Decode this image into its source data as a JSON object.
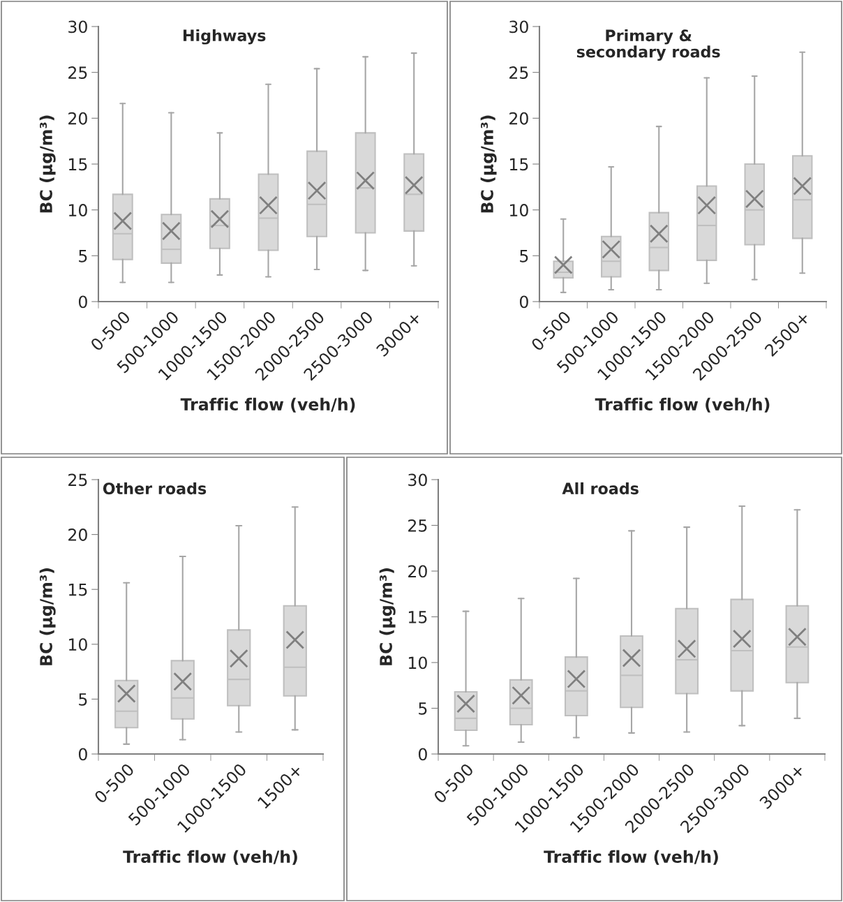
{
  "chart_data": [
    {
      "type": "box",
      "title": "Highways",
      "xlabel": "Traffic flow (veh/h)",
      "ylabel": "BC (µg/m³)",
      "categories": [
        "0-500",
        "500-1000",
        "1000-1500",
        "1500-2000",
        "2000-2500",
        "2500-3000",
        "3000+"
      ],
      "ylim": [
        0,
        30
      ],
      "yticks": [
        0,
        5,
        10,
        15,
        20,
        25,
        30
      ],
      "marker": "cross",
      "boxes": [
        {
          "low": 2.1,
          "q1": 4.6,
          "median": 7.4,
          "q3": 11.7,
          "high": 21.6,
          "mean": 8.8
        },
        {
          "low": 2.1,
          "q1": 4.2,
          "median": 5.7,
          "q3": 9.5,
          "high": 20.6,
          "mean": 7.7
        },
        {
          "low": 2.9,
          "q1": 5.8,
          "median": 8.3,
          "q3": 11.2,
          "high": 18.4,
          "mean": 9.0
        },
        {
          "low": 2.7,
          "q1": 5.6,
          "median": 9.1,
          "q3": 13.9,
          "high": 23.7,
          "mean": 10.5
        },
        {
          "low": 3.5,
          "q1": 7.1,
          "median": 10.6,
          "q3": 16.4,
          "high": 25.4,
          "mean": 12.1
        },
        {
          "low": 3.4,
          "q1": 7.5,
          "median": 12.4,
          "q3": 18.4,
          "high": 26.7,
          "mean": 13.2
        },
        {
          "low": 3.9,
          "q1": 7.7,
          "median": 11.7,
          "q3": 16.1,
          "high": 27.1,
          "mean": 12.7
        }
      ]
    },
    {
      "type": "box",
      "title": "Primary &\nsecondary roads",
      "xlabel": "Traffic flow (veh/h)",
      "ylabel": "BC (µg/m³)",
      "categories": [
        "0-500",
        "500-1000",
        "1000-1500",
        "1500-2000",
        "2000-2500",
        "2500+"
      ],
      "ylim": [
        0,
        30
      ],
      "yticks": [
        0,
        5,
        10,
        15,
        20,
        25,
        30
      ],
      "marker": "cross",
      "boxes": [
        {
          "low": 1.0,
          "q1": 2.6,
          "median": 3.2,
          "q3": 4.4,
          "high": 9.0,
          "mean": 4.0
        },
        {
          "low": 1.3,
          "q1": 2.7,
          "median": 4.4,
          "q3": 7.1,
          "high": 14.7,
          "mean": 5.7
        },
        {
          "low": 1.3,
          "q1": 3.4,
          "median": 5.9,
          "q3": 9.7,
          "high": 19.1,
          "mean": 7.4
        },
        {
          "low": 2.0,
          "q1": 4.5,
          "median": 8.3,
          "q3": 12.6,
          "high": 24.4,
          "mean": 10.5
        },
        {
          "low": 2.4,
          "q1": 6.2,
          "median": 10.0,
          "q3": 15.0,
          "high": 24.6,
          "mean": 11.2
        },
        {
          "low": 3.1,
          "q1": 6.9,
          "median": 11.1,
          "q3": 15.9,
          "high": 27.2,
          "mean": 12.6
        }
      ]
    },
    {
      "type": "box",
      "title": "Other roads",
      "xlabel": "Traffic flow (veh/h)",
      "ylabel": "BC (µg/m³)",
      "categories": [
        "0-500",
        "500-1000",
        "1000-1500",
        "1500+"
      ],
      "ylim": [
        0,
        25
      ],
      "yticks": [
        0,
        5,
        10,
        15,
        20,
        25
      ],
      "marker": "cross",
      "boxes": [
        {
          "low": 0.9,
          "q1": 2.4,
          "median": 3.9,
          "q3": 6.7,
          "high": 15.6,
          "mean": 5.5
        },
        {
          "low": 1.3,
          "q1": 3.2,
          "median": 5.1,
          "q3": 8.5,
          "high": 18.0,
          "mean": 6.6
        },
        {
          "low": 2.0,
          "q1": 4.4,
          "median": 6.8,
          "q3": 11.3,
          "high": 20.8,
          "mean": 8.7
        },
        {
          "low": 2.2,
          "q1": 5.3,
          "median": 7.9,
          "q3": 13.5,
          "high": 22.5,
          "mean": 10.4
        }
      ]
    },
    {
      "type": "box",
      "title": "All roads",
      "xlabel": "Traffic flow (veh/h)",
      "ylabel": "BC (µg/m³)",
      "categories": [
        "0-500",
        "500-1000",
        "1000-1500",
        "1500-2000",
        "2000-2500",
        "2500-3000",
        "3000+"
      ],
      "ylim": [
        0,
        30
      ],
      "yticks": [
        0,
        5,
        10,
        15,
        20,
        25,
        30
      ],
      "marker": "cross",
      "boxes": [
        {
          "low": 0.9,
          "q1": 2.6,
          "median": 3.9,
          "q3": 6.8,
          "high": 15.6,
          "mean": 5.5
        },
        {
          "low": 1.3,
          "q1": 3.2,
          "median": 5.0,
          "q3": 8.1,
          "high": 17.0,
          "mean": 6.4
        },
        {
          "low": 1.8,
          "q1": 4.2,
          "median": 6.9,
          "q3": 10.6,
          "high": 19.2,
          "mean": 8.2
        },
        {
          "low": 2.3,
          "q1": 5.1,
          "median": 8.6,
          "q3": 12.9,
          "high": 24.4,
          "mean": 10.5
        },
        {
          "low": 2.4,
          "q1": 6.6,
          "median": 10.3,
          "q3": 15.9,
          "high": 24.8,
          "mean": 11.5
        },
        {
          "low": 3.1,
          "q1": 6.9,
          "median": 11.3,
          "q3": 16.9,
          "high": 27.1,
          "mean": 12.6
        },
        {
          "low": 3.9,
          "q1": 7.8,
          "median": 11.7,
          "q3": 16.2,
          "high": 26.7,
          "mean": 12.8
        }
      ]
    }
  ]
}
